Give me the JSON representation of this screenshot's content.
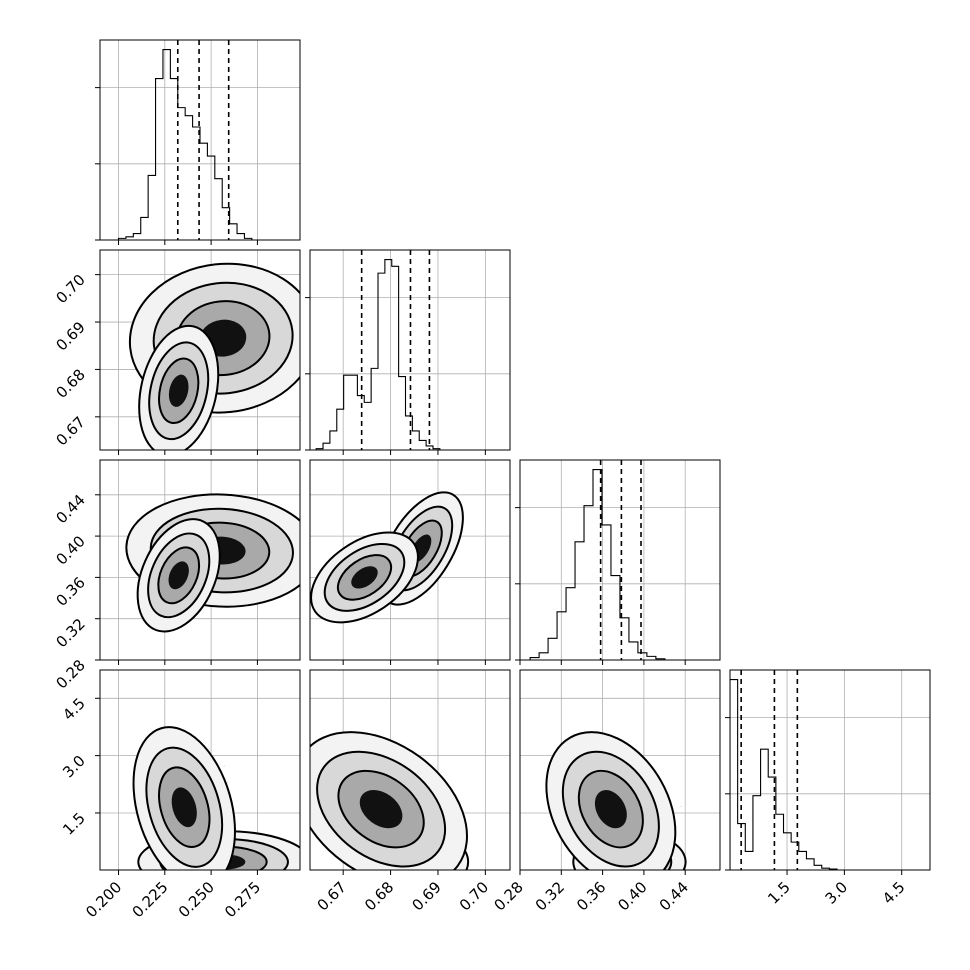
{
  "chart_data": {
    "type": "corner",
    "grid": true,
    "parameters": [
      {
        "index": 0,
        "range": [
          0.19,
          0.298
        ],
        "ticks": [
          0.2,
          0.225,
          0.25,
          0.275
        ],
        "tick_labels": [
          "0.200",
          "0.225",
          "0.250",
          "0.275"
        ],
        "quantiles": [
          0.232,
          0.2435,
          0.2595
        ],
        "hist": {
          "bin_start": 0.2,
          "bin_width": 0.004,
          "counts": [
            1,
            2,
            4,
            14,
            40,
            100,
            118,
            100,
            82,
            77,
            70,
            60,
            52,
            38,
            20,
            10,
            4,
            1
          ]
        }
      },
      {
        "index": 1,
        "range": [
          0.663,
          0.7052
        ],
        "ticks": [
          0.67,
          0.68,
          0.69,
          0.7
        ],
        "tick_labels": [
          "0.67",
          "0.68",
          "0.69",
          "0.70"
        ],
        "quantiles": [
          0.6739,
          0.6842,
          0.6882
        ],
        "hist": {
          "bin_start": 0.6643,
          "bin_width": 0.00145,
          "counts": [
            1,
            5,
            14,
            30,
            55,
            55,
            40,
            35,
            60,
            130,
            140,
            135,
            54,
            25,
            14,
            7,
            3,
            1,
            0
          ]
        }
      },
      {
        "index": 2,
        "range": [
          0.28,
          0.4737
        ],
        "ticks": [
          0.28,
          0.32,
          0.36,
          0.4,
          0.44
        ],
        "tick_labels": [
          "0.28",
          "0.32",
          "0.36",
          "0.40",
          "0.44"
        ],
        "quantiles": [
          0.3581,
          0.3782,
          0.3972
        ],
        "hist": {
          "bin_start": 0.2898,
          "bin_width": 0.0087,
          "counts": [
            2,
            6,
            18,
            40,
            60,
            98,
            128,
            158,
            112,
            70,
            35,
            15,
            6,
            3,
            1
          ]
        }
      },
      {
        "index": 3,
        "range": [
          0.008,
          5.24
        ],
        "ticks": [
          1.5,
          3.0,
          4.5
        ],
        "tick_labels": [
          "1.5",
          "3.0",
          "4.5"
        ],
        "quantiles": [
          0.3,
          1.17,
          1.77
        ],
        "hist": {
          "bin_start": 0.008,
          "bin_width": 0.2,
          "counts": [
            205,
            50,
            20,
            80,
            130,
            100,
            60,
            40,
            30,
            20,
            12,
            5,
            2,
            1,
            0,
            0,
            0,
            0
          ]
        }
      }
    ],
    "row_tick_labels": {
      "row1": [
        "0.67",
        "0.68",
        "0.69",
        "0.70"
      ],
      "row2": [
        "0.28",
        "0.32",
        "0.36",
        "0.40",
        "0.44"
      ],
      "row3": [
        "1.5",
        "3.0",
        "4.5"
      ]
    },
    "pairs": [
      {
        "row": 1,
        "col": 0,
        "clusters": [
          {
            "mean": [
              0.2565,
              0.6866
            ],
            "sd": [
              0.0125,
              0.0039
            ],
            "rho": 0.05,
            "weight": 0.64
          },
          {
            "mean": [
              0.2325,
              0.6755
            ],
            "sd": [
              0.0053,
              0.0034
            ],
            "rho": 0.25,
            "weight": 0.36
          }
        ]
      },
      {
        "row": 2,
        "col": 0,
        "clusters": [
          {
            "mean": [
              0.2558,
              0.386
            ],
            "sd": [
              0.0128,
              0.0135
            ],
            "rho": -0.05,
            "weight": 0.64
          },
          {
            "mean": [
              0.2325,
              0.362
            ],
            "sd": [
              0.0055,
              0.0135
            ],
            "rho": 0.35,
            "weight": 0.36
          }
        ]
      },
      {
        "row": 2,
        "col": 1,
        "clusters": [
          {
            "mean": [
              0.6864,
              0.388
            ],
            "sd": [
              0.0022,
              0.0135
            ],
            "rho": 0.55,
            "weight": 0.64
          },
          {
            "mean": [
              0.6745,
              0.36
            ],
            "sd": [
              0.0028,
              0.0108
            ],
            "rho": 0.45,
            "weight": 0.36
          }
        ]
      },
      {
        "row": 3,
        "col": 0,
        "clusters": [
          {
            "mean": [
              0.257,
              0.22
            ],
            "sd": [
              0.0115,
              0.2
            ],
            "rho": 0.0,
            "weight": 0.64
          },
          {
            "mean": [
              0.2355,
              1.65
            ],
            "sd": [
              0.0068,
              0.52
            ],
            "rho": -0.3,
            "weight": 0.36
          }
        ]
      },
      {
        "row": 3,
        "col": 1,
        "clusters": [
          {
            "mean": [
              0.6863,
              0.22
            ],
            "sd": [
              0.0025,
              0.2
            ],
            "rho": 0.0,
            "weight": 0.64
          },
          {
            "mean": [
              0.678,
              1.6
            ],
            "sd": [
              0.0045,
              0.5
            ],
            "rho": -0.35,
            "weight": 0.36
          }
        ]
      },
      {
        "row": 3,
        "col": 2,
        "clusters": [
          {
            "mean": [
              0.386,
              0.22
            ],
            "sd": [
              0.0135,
              0.2
            ],
            "rho": 0.0,
            "weight": 0.64
          },
          {
            "mean": [
              0.368,
              1.6
            ],
            "sd": [
              0.0155,
              0.5
            ],
            "rho": -0.3,
            "weight": 0.36
          }
        ]
      }
    ],
    "colors": {
      "scatter": "#000000",
      "contour_line": "#000000",
      "contour_fills": [
        "#f3f3f3",
        "#d8d8d8",
        "#a9a9a9",
        "#000000"
      ],
      "grid": "#b0b0b0",
      "background": "#ffffff"
    }
  }
}
